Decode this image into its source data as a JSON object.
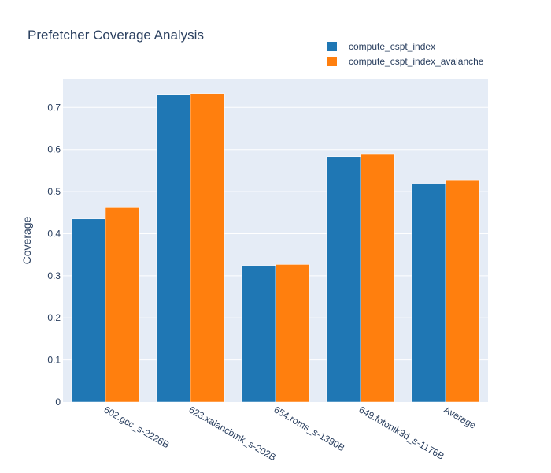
{
  "chart_data": {
    "type": "bar",
    "title": "Prefetcher Coverage Analysis",
    "xlabel": "",
    "ylabel": "Coverage",
    "categories": [
      "602.gcc_s-2226B",
      "623.xalancbmk_s-202B",
      "654.roms_s-1390B",
      "649.fotonik3d_s-1176B",
      "Average"
    ],
    "series": [
      {
        "name": "compute_cspt_index",
        "color": "#1f77b4",
        "values": [
          0.435,
          0.731,
          0.324,
          0.583,
          0.518
        ]
      },
      {
        "name": "compute_cspt_index_avalanche",
        "color": "#ff7f0e",
        "values": [
          0.462,
          0.733,
          0.327,
          0.59,
          0.528
        ]
      }
    ],
    "ylim": [
      0,
      0.768
    ],
    "yticks": [
      0,
      0.1,
      0.2,
      0.3,
      0.4,
      0.5,
      0.6,
      0.7
    ],
    "ytick_labels": [
      "0",
      "0.1",
      "0.2",
      "0.3",
      "0.4",
      "0.5",
      "0.6",
      "0.7"
    ],
    "grid": true,
    "legend_position": "top-right",
    "plot_background": "#e5ecf6"
  }
}
